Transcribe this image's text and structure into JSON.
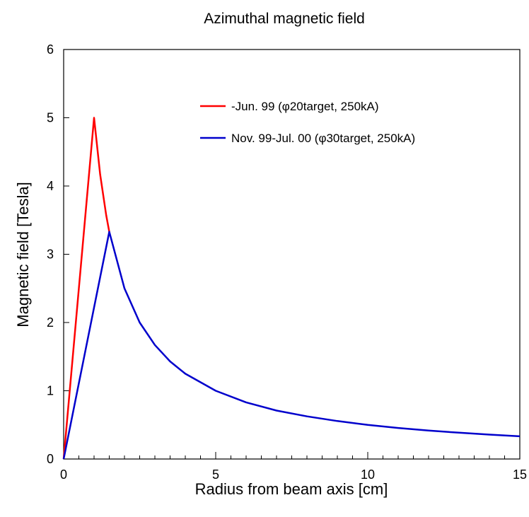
{
  "chart_data": {
    "type": "line",
    "title": "Azimuthal magnetic field",
    "xlabel": "Radius from beam axis [cm]",
    "ylabel": "Magnetic field [Tesla]",
    "xlim": [
      0,
      15
    ],
    "ylim": [
      0,
      6
    ],
    "xticks": [
      0,
      5,
      10,
      15
    ],
    "xtick_labels": [
      "0",
      "5",
      "10",
      "15"
    ],
    "yticks": [
      0,
      1,
      2,
      3,
      4,
      5,
      6
    ],
    "ytick_labels": [
      "0",
      "1",
      "2",
      "3",
      "4",
      "5",
      "6"
    ],
    "grid": false,
    "legend_position": "top-right",
    "series": [
      {
        "name": "-Jun. 99 (φ20target, 250kA)",
        "color": "#ff0000",
        "x": [
          0,
          0.5,
          1.0,
          1.2,
          1.4,
          1.5
        ],
        "y": [
          0,
          2.5,
          5.0,
          4.17,
          3.57,
          3.33
        ]
      },
      {
        "name": "Nov. 99-Jul. 00 (φ30target, 250kA)",
        "color": "#0000cc",
        "x": [
          0,
          0.5,
          1.0,
          1.5,
          2.0,
          2.5,
          3.0,
          3.5,
          4.0,
          5.0,
          6.0,
          7.0,
          8.0,
          9.0,
          10.0,
          11.0,
          12.0,
          13.0,
          14.0,
          15.0
        ],
        "y": [
          0,
          1.11,
          2.22,
          3.33,
          2.5,
          2.0,
          1.67,
          1.43,
          1.25,
          1.0,
          0.83,
          0.71,
          0.625,
          0.556,
          0.5,
          0.455,
          0.417,
          0.385,
          0.357,
          0.333
        ]
      }
    ]
  }
}
